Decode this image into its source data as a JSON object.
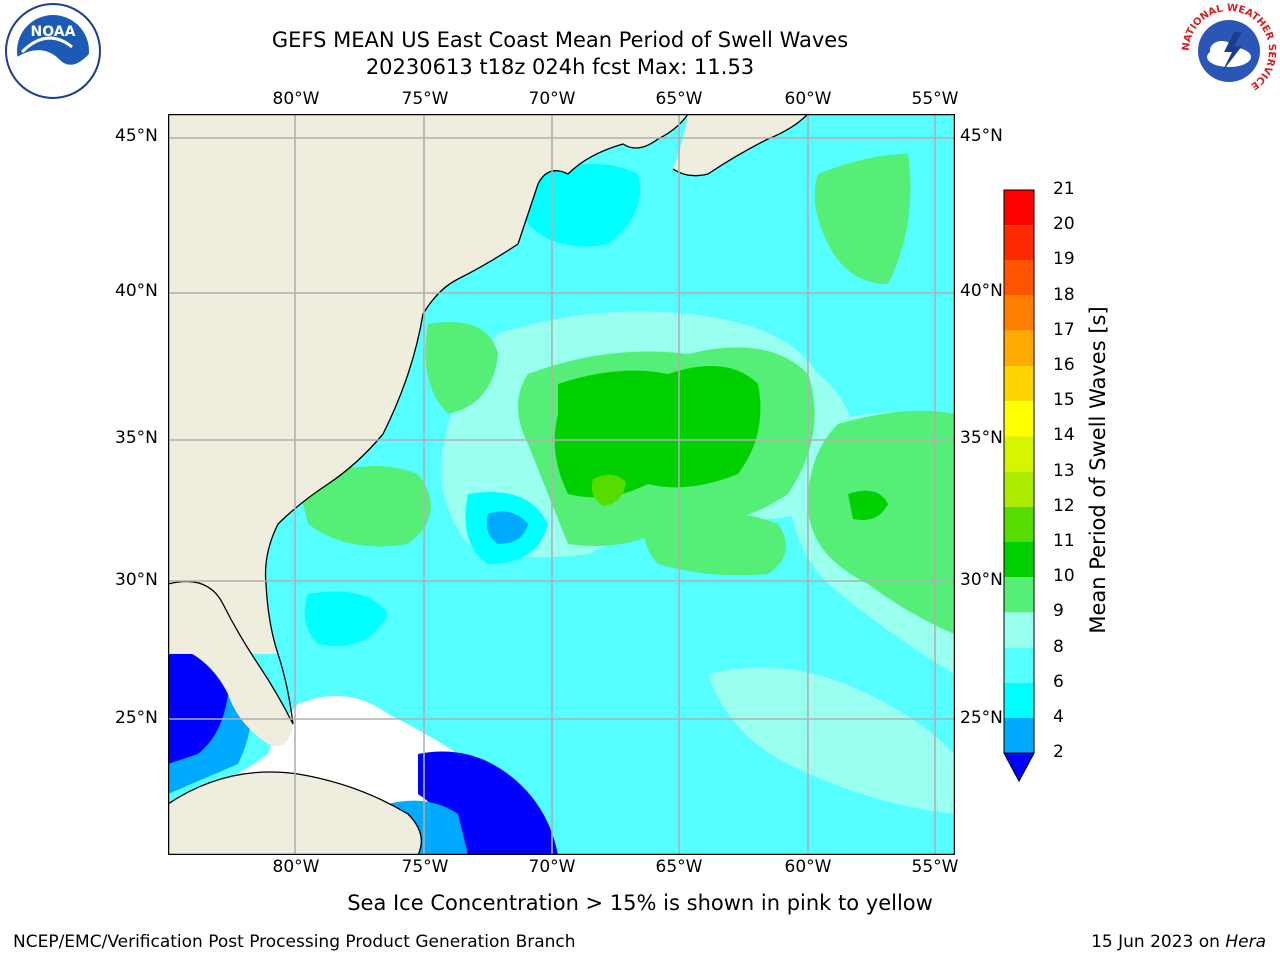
{
  "title": {
    "line1": "GEFS MEAN US East Coast Mean Period of Swell Waves",
    "line2": "20230613 t18z 024h fcst   Max: 11.53"
  },
  "map": {
    "lon_labels": [
      "80°W",
      "75°W",
      "70°W",
      "65°W",
      "60°W",
      "55°W"
    ],
    "lat_labels": [
      "45°N",
      "40°N",
      "35°N",
      "30°N",
      "25°N"
    ],
    "colors": {
      "land": "#efeddd",
      "missing": "#ffffff",
      "grid": "#b0b0b0",
      "coast": "#000000"
    }
  },
  "colorbar": {
    "title": "Mean Period of Swell Waves [s]",
    "ticks": [
      "21",
      "20",
      "19",
      "18",
      "17",
      "16",
      "15",
      "14",
      "13",
      "12",
      "11",
      "10",
      "9",
      "8",
      "6",
      "4",
      "2"
    ],
    "colors": [
      "#ff0000",
      "#ff2a00",
      "#ff5500",
      "#ff8000",
      "#ffaa00",
      "#ffd500",
      "#ffff00",
      "#d5f500",
      "#aaeb00",
      "#55dd00",
      "#00d000",
      "#55ee77",
      "#99ffee",
      "#55ffff",
      "#00ffff",
      "#00aaff",
      "#0000ff"
    ]
  },
  "note": "Sea Ice Concentration > 15% is shown in pink to yellow",
  "footer": {
    "left": "NCEP/EMC/Verification Post Processing Product Generation Branch",
    "right_prefix": "15 Jun 2023 on ",
    "right_machine": "Hera"
  },
  "logos": {
    "left": "NOAA",
    "right_ring": "NATIONAL WEATHER SERVICE"
  }
}
